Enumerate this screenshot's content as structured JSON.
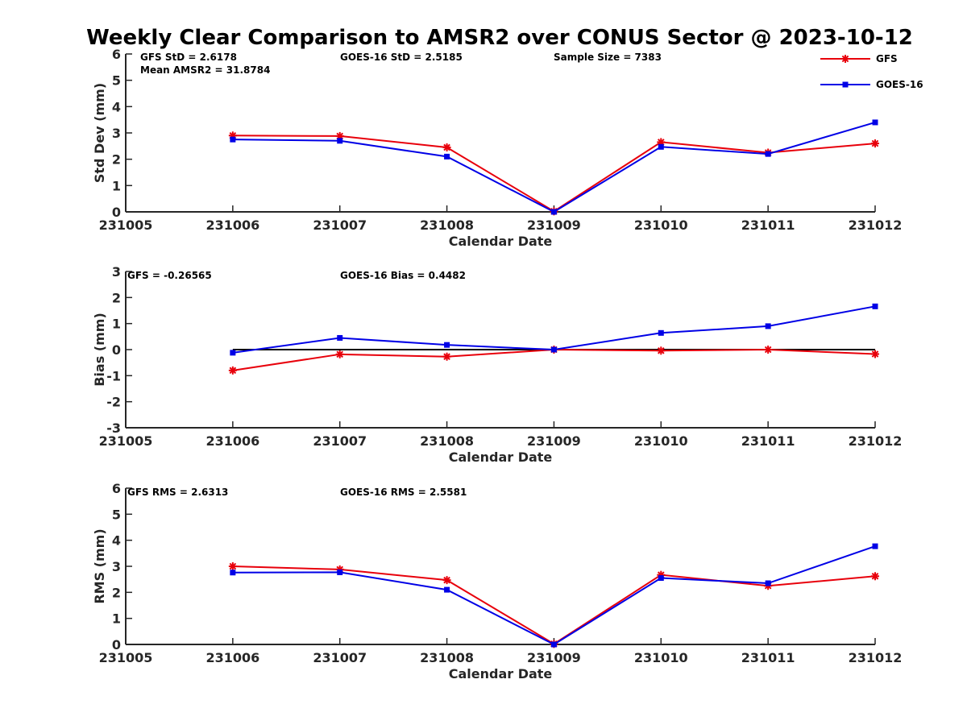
{
  "title": "Weekly Clear Comparison to AMSR2 over CONUS Sector @ 2023-10-12",
  "legend": {
    "placement": "top-right",
    "entries": [
      {
        "name": "GFS",
        "color": "#e8000b",
        "marker": "asterisk"
      },
      {
        "name": "GOES-16",
        "color": "#0000e6",
        "marker": "square"
      }
    ]
  },
  "chart_data": [
    {
      "type": "line",
      "xlabel": "Calendar Date",
      "ylabel": "Std Dev (mm)",
      "x": [
        "231006",
        "231007",
        "231008",
        "231009",
        "231010",
        "231011",
        "231012"
      ],
      "xticks": [
        "231005",
        "231006",
        "231007",
        "231008",
        "231009",
        "231010",
        "231011",
        "231012"
      ],
      "xlim": [
        "231005",
        "231012"
      ],
      "ylim": [
        0,
        6
      ],
      "yticks": [
        "0",
        "1",
        "2",
        "3",
        "4",
        "5",
        "6"
      ],
      "zero_line": false,
      "annotations": [
        "GFS StD = 2.6178",
        "GOES-16 StD = 2.5185",
        "Sample Size = 7383",
        "Mean AMSR2 = 31.8784"
      ],
      "series": [
        {
          "name": "GFS",
          "values": [
            2.9,
            2.88,
            2.45,
            0.02,
            2.65,
            2.25,
            2.6
          ]
        },
        {
          "name": "GOES-16",
          "values": [
            2.75,
            2.7,
            2.1,
            0.0,
            2.47,
            2.2,
            3.4
          ]
        }
      ]
    },
    {
      "type": "line",
      "xlabel": "Calendar Date",
      "ylabel": "Bias (mm)",
      "x": [
        "231006",
        "231007",
        "231008",
        "231009",
        "231010",
        "231011",
        "231012"
      ],
      "xticks": [
        "231005",
        "231006",
        "231007",
        "231008",
        "231009",
        "231010",
        "231011",
        "231012"
      ],
      "xlim": [
        "231005",
        "231012"
      ],
      "ylim": [
        -3,
        3
      ],
      "yticks": [
        "-3",
        "-2",
        "-1",
        "0",
        "1",
        "2",
        "3"
      ],
      "zero_line": true,
      "annotations": [
        "GFS = -0.26565",
        "GOES-16 Bias  = 0.4482"
      ],
      "series": [
        {
          "name": "GFS",
          "values": [
            -0.8,
            -0.18,
            -0.27,
            0.0,
            -0.04,
            0.0,
            -0.17
          ]
        },
        {
          "name": "GOES-16",
          "values": [
            -0.12,
            0.45,
            0.18,
            0.0,
            0.64,
            0.9,
            1.66
          ]
        }
      ]
    },
    {
      "type": "line",
      "xlabel": "Calendar Date",
      "ylabel": "RMS (mm)",
      "x": [
        "231006",
        "231007",
        "231008",
        "231009",
        "231010",
        "231011",
        "231012"
      ],
      "xticks": [
        "231005",
        "231006",
        "231007",
        "231008",
        "231009",
        "231010",
        "231011",
        "231012"
      ],
      "xlim": [
        "231005",
        "231012"
      ],
      "ylim": [
        0,
        6
      ],
      "yticks": [
        "0",
        "1",
        "2",
        "3",
        "4",
        "5",
        "6"
      ],
      "zero_line": false,
      "annotations": [
        "GFS RMS = 2.6313",
        "GOES-16 RMS = 2.5581"
      ],
      "series": [
        {
          "name": "GFS",
          "values": [
            3.0,
            2.88,
            2.47,
            0.02,
            2.67,
            2.25,
            2.62
          ]
        },
        {
          "name": "GOES-16",
          "values": [
            2.76,
            2.77,
            2.1,
            0.0,
            2.55,
            2.35,
            3.77
          ]
        }
      ]
    }
  ]
}
